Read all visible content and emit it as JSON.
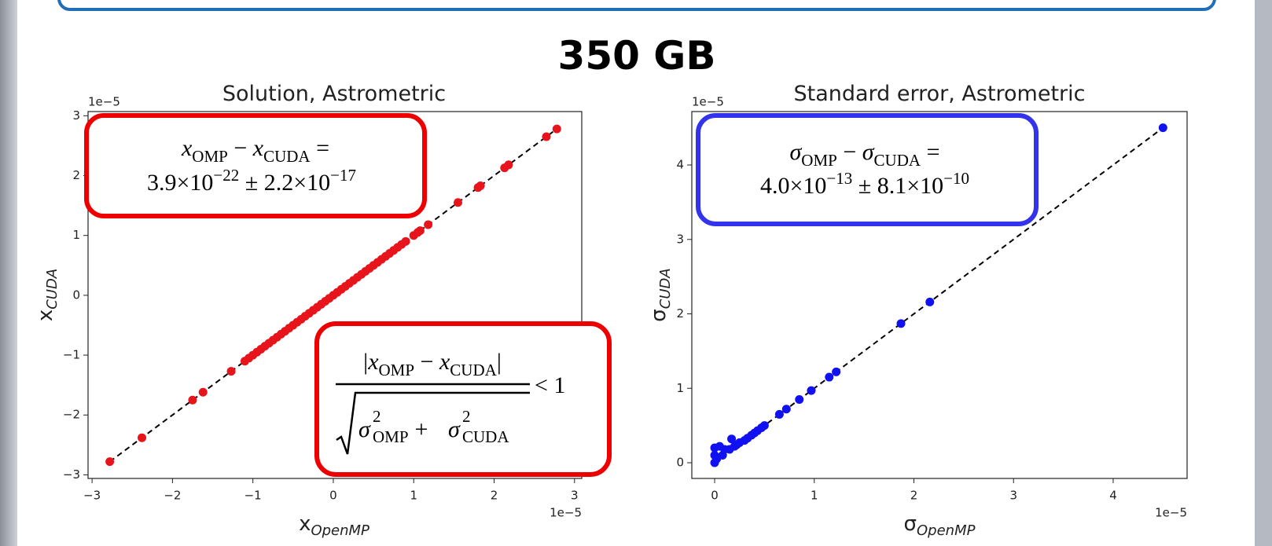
{
  "title": "350 GB",
  "chart_data": [
    {
      "type": "scatter",
      "title": "Solution, Astrometric",
      "xlabel": {
        "main": "x",
        "sub": "OpenMP"
      },
      "ylabel": {
        "main": "x",
        "sub": "CUDA"
      },
      "offset_text": "1e−5",
      "color": "#e8141c",
      "x": [
        -2.78,
        -2.38,
        -1.75,
        -1.62,
        -1.27,
        -1.1,
        -1.05,
        -1.0,
        -0.95,
        -0.9,
        -0.85,
        -0.8,
        -0.75,
        -0.7,
        -0.65,
        -0.6,
        -0.55,
        -0.5,
        -0.45,
        -0.4,
        -0.35,
        -0.3,
        -0.25,
        -0.2,
        -0.15,
        -0.1,
        -0.05,
        0,
        0.05,
        0.1,
        0.15,
        0.2,
        0.25,
        0.3,
        0.35,
        0.4,
        0.45,
        0.5,
        0.55,
        0.6,
        0.65,
        0.7,
        0.75,
        0.8,
        0.85,
        0.9,
        1.0,
        1.05,
        1.08,
        1.18,
        1.55,
        1.8,
        1.83,
        2.13,
        2.18,
        2.65,
        2.78
      ],
      "series": [
        {
          "values": [
            -2.78,
            -2.38,
            -1.75,
            -1.62,
            -1.27,
            -1.1,
            -1.05,
            -1.0,
            -0.95,
            -0.9,
            -0.85,
            -0.8,
            -0.75,
            -0.7,
            -0.65,
            -0.6,
            -0.55,
            -0.5,
            -0.45,
            -0.4,
            -0.35,
            -0.3,
            -0.25,
            -0.2,
            -0.15,
            -0.1,
            -0.05,
            0,
            0.05,
            0.1,
            0.15,
            0.2,
            0.25,
            0.3,
            0.35,
            0.4,
            0.45,
            0.5,
            0.55,
            0.6,
            0.65,
            0.7,
            0.75,
            0.8,
            0.85,
            0.9,
            1.0,
            1.05,
            1.08,
            1.18,
            1.55,
            1.8,
            1.83,
            2.13,
            2.18,
            2.65,
            2.78
          ]
        }
      ],
      "xlim": [
        -3.05,
        3.09
      ],
      "ylim": [
        -3.06,
        3.07
      ],
      "xticks": [
        {
          "value": -3,
          "label": "−3"
        },
        {
          "value": -2,
          "label": "−2"
        },
        {
          "value": -1,
          "label": "−1"
        },
        0,
        1,
        2,
        3
      ],
      "yticks": [
        {
          "value": -3,
          "label": "−3"
        },
        {
          "value": -2,
          "label": "−2"
        },
        {
          "value": -1,
          "label": "−1"
        },
        0,
        1,
        2,
        3
      ],
      "annotations": [
        {
          "lines": [
            [
              "x",
              "OMP",
              " − ",
              "x",
              "CUDA",
              " ="
            ],
            [
              "3.9×10",
              "−22",
              " ± 2.2×10",
              "−17"
            ]
          ]
        },
        {
          "numerator": [
            "|",
            "x",
            "OMP",
            " − ",
            "x",
            "CUDA",
            "|"
          ],
          "denominator": [
            "σ",
            "2",
            "OMP",
            " + ",
            "σ",
            "2",
            "CUDA"
          ],
          "relation": "< 1"
        }
      ]
    },
    {
      "type": "scatter",
      "title": "Standard error, Astrometric",
      "xlabel": {
        "main": "σ",
        "sub": "OpenMP"
      },
      "ylabel": {
        "main": "σ",
        "sub": "CUDA"
      },
      "offset_text": "1e−5",
      "color": "#1010f0",
      "x": [
        0,
        0,
        0,
        0.02,
        0.05,
        0.08,
        0.1,
        0.15,
        0.17,
        0.2,
        0.22,
        0.25,
        0.3,
        0.33,
        0.37,
        0.4,
        0.43,
        0.47,
        0.5,
        0.65,
        0.72,
        0.85,
        0.97,
        1.15,
        1.22,
        1.87,
        2.16,
        4.5
      ],
      "series": [
        {
          "values": [
            0,
            0.2,
            0.1,
            0.05,
            0.22,
            0.1,
            0.18,
            0.18,
            0.32,
            0.22,
            0.24,
            0.27,
            0.3,
            0.33,
            0.37,
            0.4,
            0.43,
            0.47,
            0.5,
            0.65,
            0.72,
            0.85,
            0.97,
            1.15,
            1.22,
            1.87,
            2.16,
            4.5
          ]
        }
      ],
      "xlim": [
        -0.229,
        4.742
      ],
      "ylim": [
        -0.211,
        4.718
      ],
      "xticks": [
        0,
        1,
        2,
        3,
        4
      ],
      "yticks": [
        0,
        1,
        2,
        3,
        4
      ],
      "annotations": [
        {
          "lines": [
            [
              "σ",
              "OMP",
              " − ",
              "σ",
              "CUDA",
              " ="
            ],
            [
              "4.0×10",
              "−13",
              " ± 8.1×10",
              "−10"
            ]
          ]
        }
      ]
    }
  ]
}
